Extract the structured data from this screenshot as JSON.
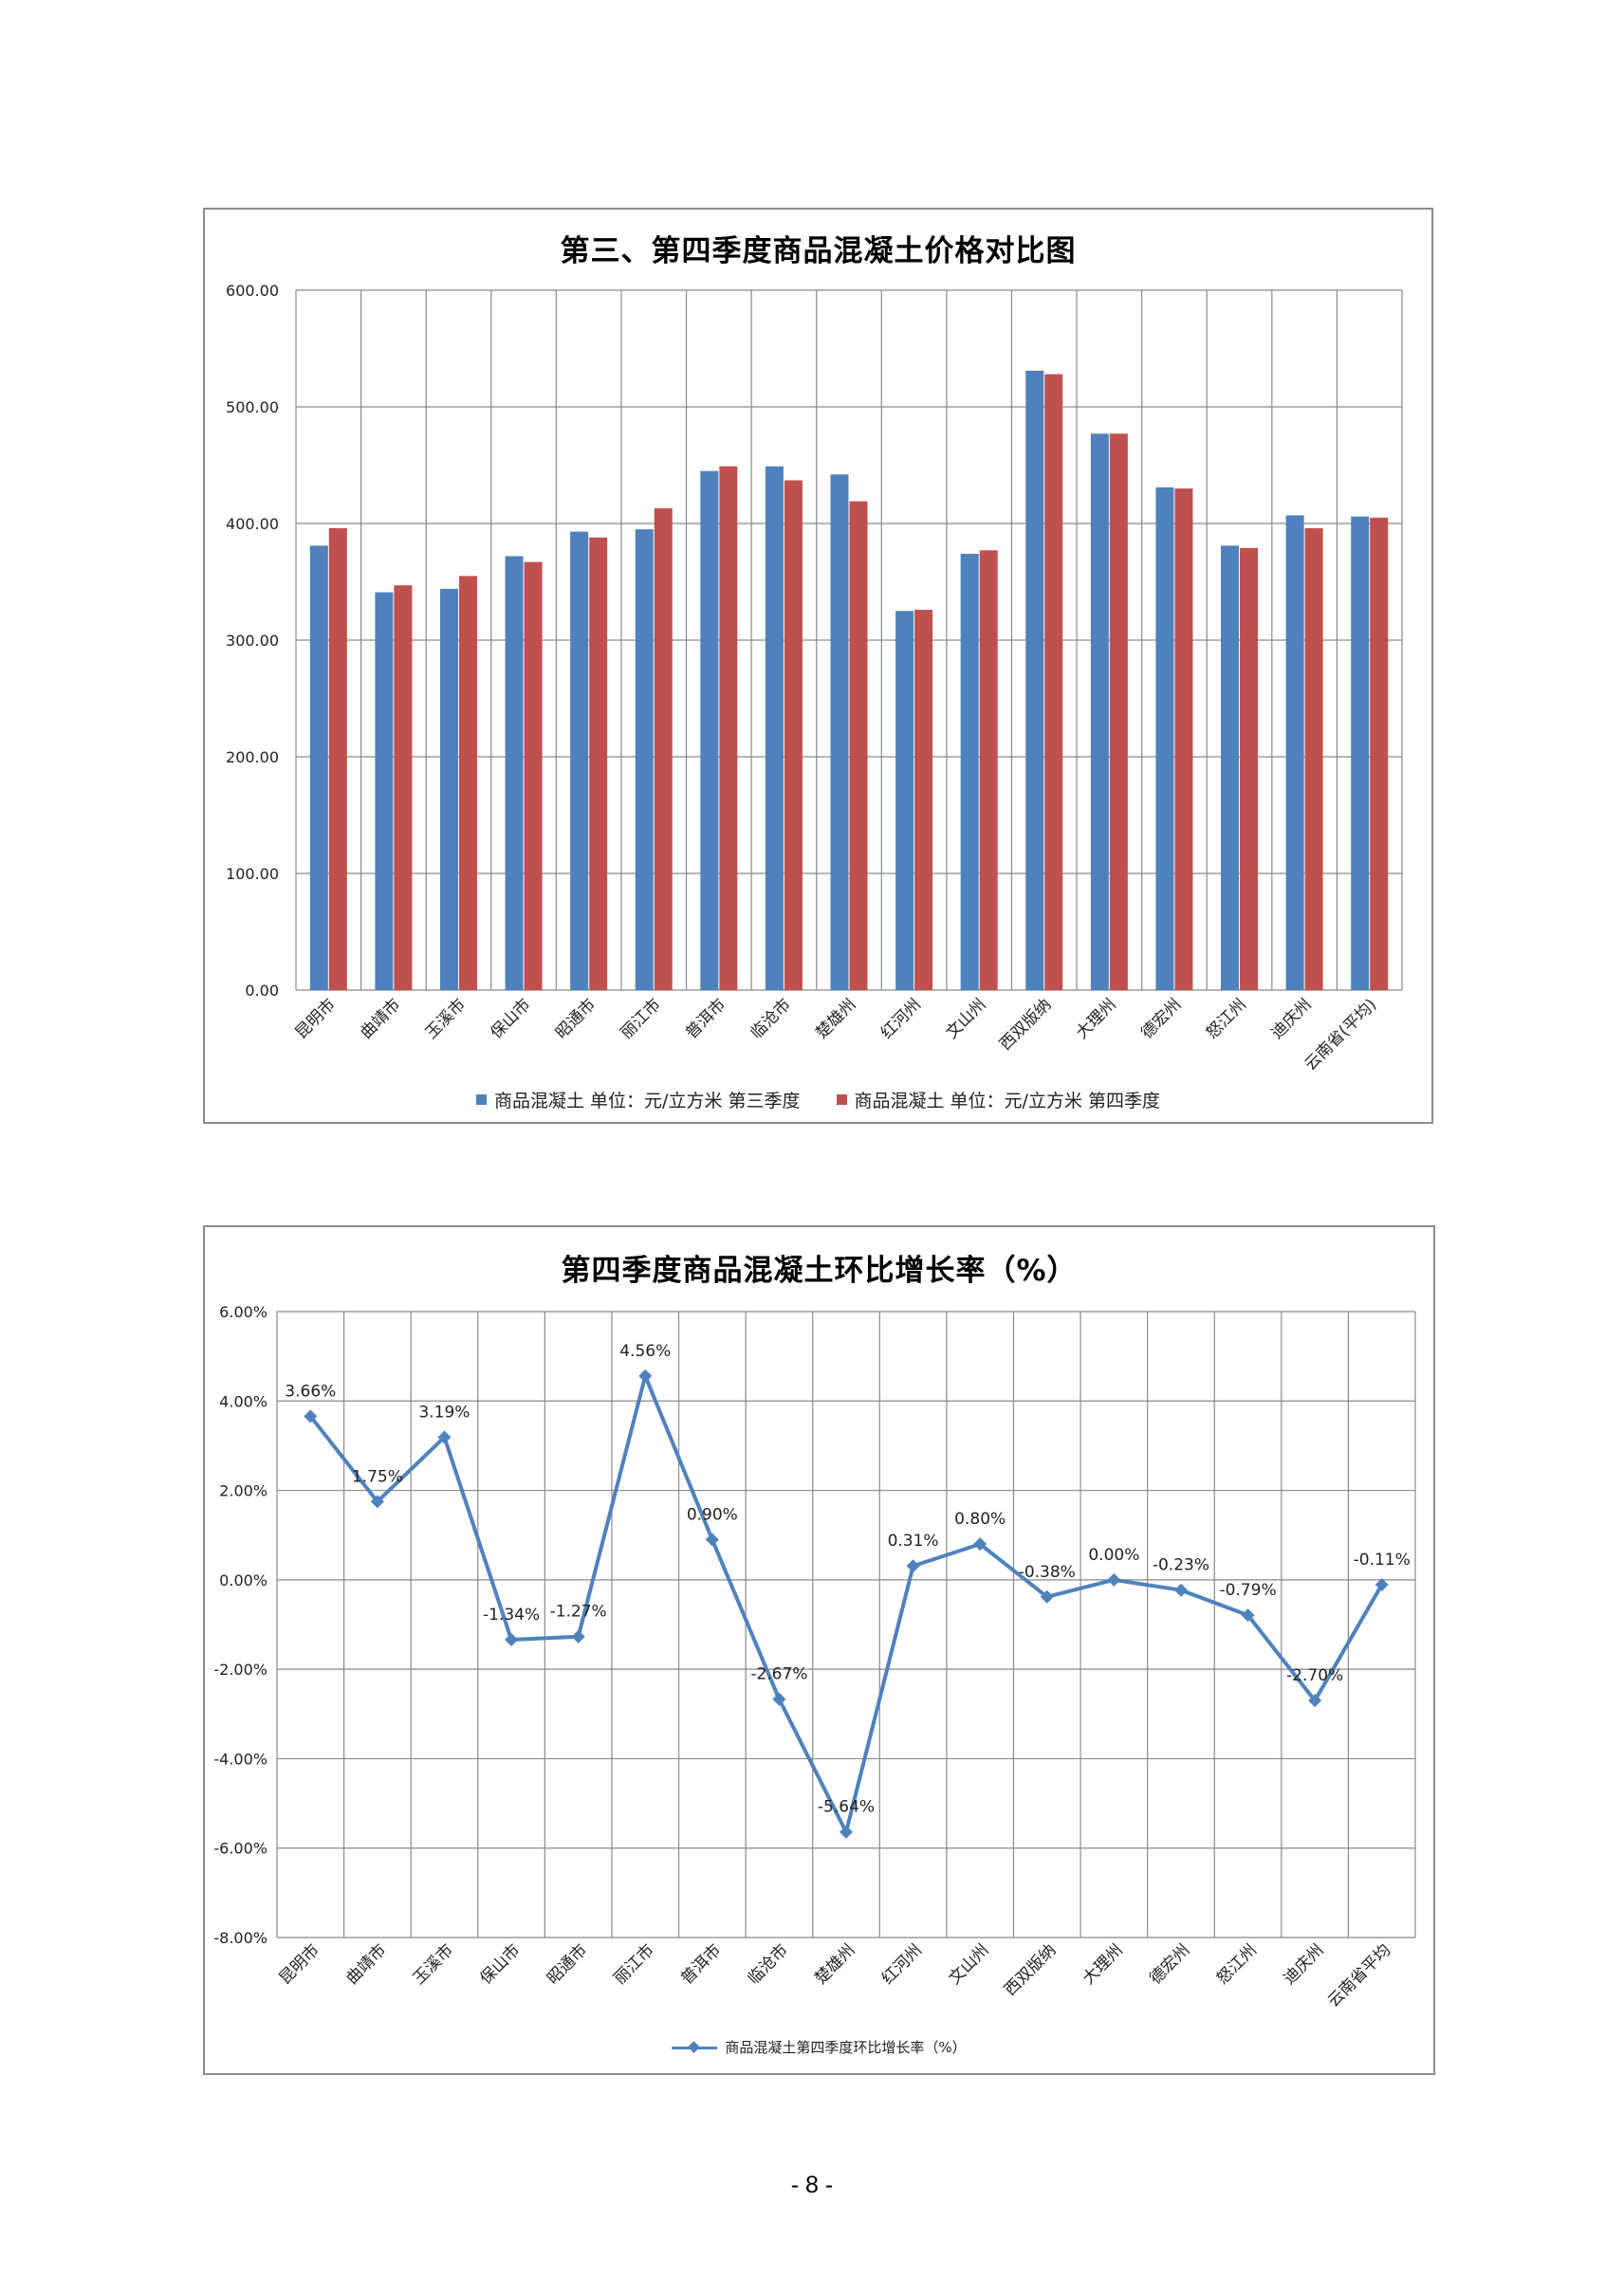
{
  "page": {
    "number": "- 8 -"
  },
  "chart_data": [
    {
      "type": "bar",
      "title": "第三、第四季度商品混凝土价格对比图",
      "categories": [
        "昆明市",
        "曲靖市",
        "玉溪市",
        "保山市",
        "昭通市",
        "丽江市",
        "普洱市",
        "临沧市",
        "楚雄州",
        "红河州",
        "文山州",
        "西双版纳",
        "大理州",
        "德宏州",
        "怒江州",
        "迪庆州",
        "云南省(平均)"
      ],
      "ylim": [
        0,
        600
      ],
      "yticks": [
        "0.00",
        "100.00",
        "200.00",
        "300.00",
        "400.00",
        "500.00",
        "600.00"
      ],
      "grid": true,
      "legend_position": "bottom",
      "series": [
        {
          "name": "商品混凝土  单位：元/立方米  第三季度",
          "color": "#4f81bd",
          "values": [
            381,
            341,
            344,
            372,
            393,
            395,
            445,
            449,
            442,
            325,
            374,
            531,
            477,
            431,
            381,
            407,
            406
          ]
        },
        {
          "name": "商品混凝土  单位：元/立方米  第四季度",
          "color": "#c0504d",
          "values": [
            396,
            347,
            355,
            367,
            388,
            413,
            449,
            437,
            419,
            326,
            377,
            528,
            477,
            430,
            379,
            396,
            405
          ]
        }
      ]
    },
    {
      "type": "line",
      "title": "第四季度商品混凝土环比增长率（%）",
      "categories": [
        "昆明市",
        "曲靖市",
        "玉溪市",
        "保山市",
        "昭通市",
        "丽江市",
        "普洱市",
        "临沧市",
        "楚雄州",
        "红河州",
        "文山州",
        "西双版纳",
        "大理州",
        "德宏州",
        "怒江州",
        "迪庆州",
        "云南省平均"
      ],
      "ylim": [
        -8,
        6
      ],
      "yticks": [
        "-8.00%",
        "-6.00%",
        "-4.00%",
        "-2.00%",
        "0.00%",
        "2.00%",
        "4.00%",
        "6.00%"
      ],
      "grid": true,
      "legend_position": "bottom",
      "series": [
        {
          "name": "商品混凝土第四季度环比增长率（%）",
          "color": "#4f81bd",
          "values": [
            3.66,
            1.75,
            3.19,
            -1.34,
            -1.27,
            4.56,
            0.9,
            -2.67,
            -5.64,
            0.31,
            0.8,
            -0.38,
            0.0,
            -0.23,
            -0.79,
            -2.7,
            -0.11
          ],
          "labels": [
            "3.66%",
            "1.75%",
            "3.19%",
            "-1.34%",
            "-1.27%",
            "4.56%",
            "0.90%",
            "-2.67%",
            "-5.64%",
            "0.31%",
            "0.80%",
            "-0.38%",
            "0.00%",
            "-0.23%",
            "-0.79%",
            "-2.70%",
            "-0.11%"
          ]
        }
      ]
    }
  ]
}
